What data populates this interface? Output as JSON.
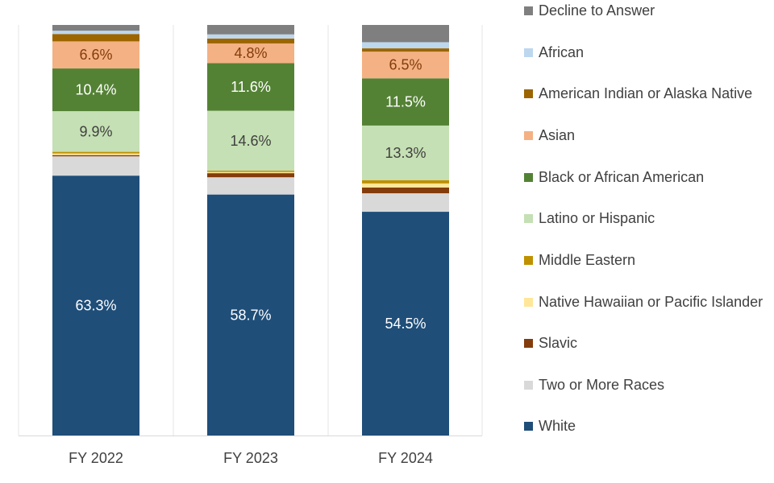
{
  "chart_data": {
    "type": "bar",
    "stacked": true,
    "percent": true,
    "categories": [
      "FY 2022",
      "FY 2023",
      "FY 2024"
    ],
    "series": [
      {
        "name": "White",
        "color": "#1f4e79",
        "values": [
          63.3,
          58.7,
          54.5
        ]
      },
      {
        "name": "Two or More Races",
        "color": "#d9d9d9",
        "values": [
          4.7,
          4.2,
          4.5
        ]
      },
      {
        "name": "Slavic",
        "color": "#843c0c",
        "values": [
          0.3,
          1.0,
          1.4
        ]
      },
      {
        "name": "Native Hawaiian or Pacific Islander",
        "color": "#ffe699",
        "values": [
          0.4,
          0.3,
          1.0
        ]
      },
      {
        "name": "Middle Eastern",
        "color": "#bf9000",
        "values": [
          0.4,
          0.3,
          0.8
        ]
      },
      {
        "name": "Latino or Hispanic",
        "color": "#c5e0b4",
        "values": [
          9.9,
          14.6,
          13.3
        ]
      },
      {
        "name": "Black or African American",
        "color": "#548235",
        "values": [
          10.4,
          11.6,
          11.5
        ]
      },
      {
        "name": "Asian",
        "color": "#f4b183",
        "values": [
          6.6,
          4.8,
          6.5
        ]
      },
      {
        "name": "American Indian or Alaska Native",
        "color": "#9c6500",
        "values": [
          1.8,
          1.2,
          0.8
        ]
      },
      {
        "name": "African",
        "color": "#bdd7ee",
        "values": [
          0.8,
          1.0,
          1.5
        ]
      },
      {
        "name": "Decline to Answer",
        "color": "#7f7f7f",
        "values": [
          1.4,
          2.3,
          4.2
        ]
      }
    ],
    "labels_shown_for": [
      "White",
      "Latino or Hispanic",
      "Black or African American",
      "Asian"
    ],
    "value_labels": {
      "White": [
        "63.3%",
        "58.7%",
        "54.5%"
      ],
      "Latino or Hispanic": [
        "9.9%",
        "14.6%",
        "13.3%"
      ],
      "Black or African American": [
        "10.4%",
        "11.6%",
        "11.5%"
      ],
      "Asian": [
        "6.6%",
        "4.8%",
        "6.5%"
      ]
    },
    "label_colors": {
      "White": "#ffffff",
      "Latino or Hispanic": "#404040",
      "Black or African American": "#ffffff",
      "Asian": "#843c0c"
    },
    "ylim": [
      0,
      100
    ],
    "title": "",
    "xlabel": "",
    "ylabel": "",
    "grid": "vertical-separators",
    "legend_position": "right",
    "legend_order": [
      "Decline to Answer",
      "African",
      "American Indian or Alaska Native",
      "Asian",
      "Black or African American",
      "Latino or Hispanic",
      "Middle Eastern",
      "Native Hawaiian or Pacific Islander",
      "Slavic",
      "Two or More Races",
      "White"
    ]
  }
}
